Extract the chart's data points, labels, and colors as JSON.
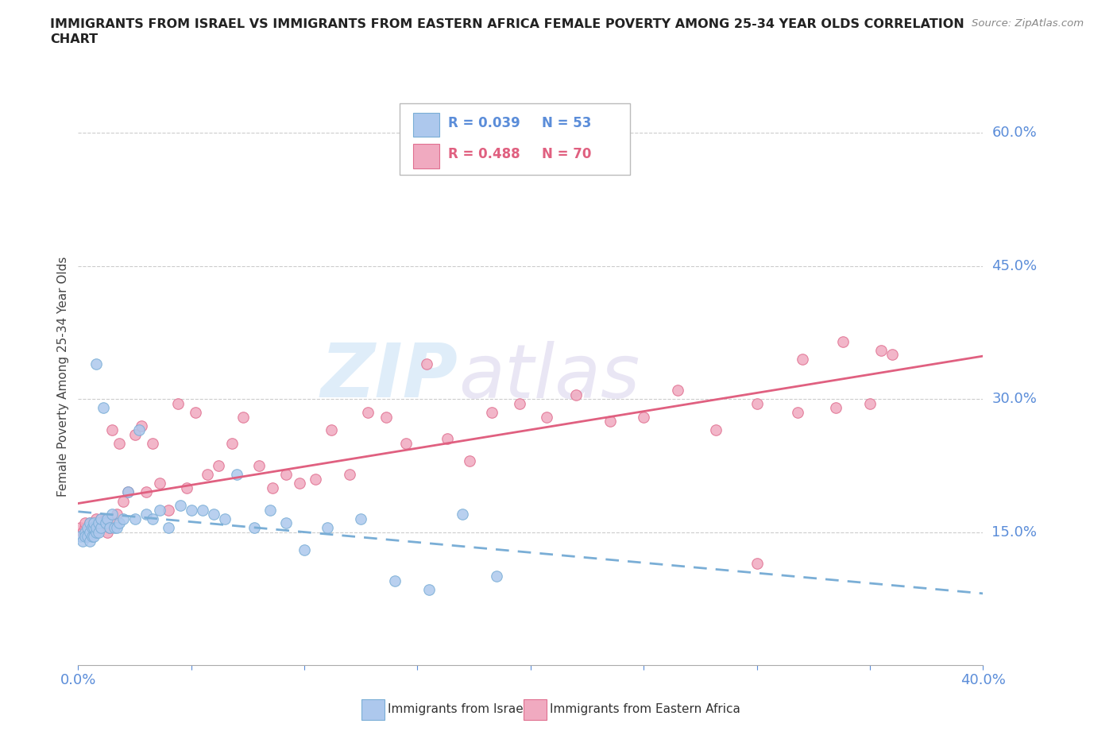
{
  "title_line1": "IMMIGRANTS FROM ISRAEL VS IMMIGRANTS FROM EASTERN AFRICA FEMALE POVERTY AMONG 25-34 YEAR OLDS CORRELATION",
  "title_line2": "CHART",
  "source": "Source: ZipAtlas.com",
  "ylabel": "Female Poverty Among 25-34 Year Olds",
  "xlim": [
    0.0,
    0.4
  ],
  "ylim": [
    0.0,
    0.65
  ],
  "ytick_positions": [
    0.15,
    0.3,
    0.45,
    0.6
  ],
  "ytick_labels": [
    "15.0%",
    "30.0%",
    "45.0%",
    "60.0%"
  ],
  "israel_color": "#adc8ed",
  "eastern_africa_color": "#f0aac0",
  "israel_edge_color": "#7aaed6",
  "eastern_africa_edge_color": "#e07090",
  "israel_line_color": "#7aaed6",
  "eastern_africa_line_color": "#e06080",
  "legend_R_israel": "R = 0.039",
  "legend_N_israel": "N = 53",
  "legend_R_eastern": "R = 0.488",
  "legend_N_eastern": "N = 70",
  "watermark_zip": "ZIP",
  "watermark_atlas": "atlas",
  "israel_scatter_x": [
    0.001,
    0.002,
    0.003,
    0.003,
    0.004,
    0.004,
    0.005,
    0.005,
    0.005,
    0.006,
    0.006,
    0.007,
    0.007,
    0.007,
    0.008,
    0.008,
    0.008,
    0.009,
    0.009,
    0.01,
    0.01,
    0.011,
    0.012,
    0.013,
    0.014,
    0.015,
    0.016,
    0.017,
    0.018,
    0.02,
    0.022,
    0.025,
    0.027,
    0.03,
    0.033,
    0.036,
    0.04,
    0.045,
    0.05,
    0.055,
    0.06,
    0.065,
    0.07,
    0.078,
    0.085,
    0.092,
    0.1,
    0.11,
    0.125,
    0.14,
    0.155,
    0.17,
    0.185
  ],
  "israel_scatter_y": [
    0.145,
    0.14,
    0.15,
    0.145,
    0.145,
    0.155,
    0.14,
    0.15,
    0.16,
    0.145,
    0.155,
    0.145,
    0.155,
    0.16,
    0.15,
    0.155,
    0.34,
    0.15,
    0.16,
    0.155,
    0.165,
    0.29,
    0.16,
    0.165,
    0.155,
    0.17,
    0.155,
    0.155,
    0.16,
    0.165,
    0.195,
    0.165,
    0.265,
    0.17,
    0.165,
    0.175,
    0.155,
    0.18,
    0.175,
    0.175,
    0.17,
    0.165,
    0.215,
    0.155,
    0.175,
    0.16,
    0.13,
    0.155,
    0.165,
    0.095,
    0.085,
    0.17,
    0.1
  ],
  "eastern_africa_scatter_x": [
    0.001,
    0.002,
    0.003,
    0.003,
    0.004,
    0.005,
    0.005,
    0.006,
    0.006,
    0.007,
    0.007,
    0.008,
    0.008,
    0.009,
    0.009,
    0.01,
    0.01,
    0.011,
    0.012,
    0.013,
    0.014,
    0.015,
    0.016,
    0.017,
    0.018,
    0.02,
    0.022,
    0.025,
    0.028,
    0.03,
    0.033,
    0.036,
    0.04,
    0.044,
    0.048,
    0.052,
    0.057,
    0.062,
    0.068,
    0.073,
    0.08,
    0.086,
    0.092,
    0.098,
    0.105,
    0.112,
    0.12,
    0.128,
    0.136,
    0.145,
    0.154,
    0.163,
    0.173,
    0.183,
    0.195,
    0.207,
    0.22,
    0.235,
    0.25,
    0.265,
    0.282,
    0.3,
    0.3,
    0.318,
    0.32,
    0.335,
    0.338,
    0.35,
    0.355,
    0.36
  ],
  "eastern_africa_scatter_y": [
    0.155,
    0.15,
    0.155,
    0.16,
    0.145,
    0.155,
    0.16,
    0.15,
    0.16,
    0.155,
    0.16,
    0.15,
    0.165,
    0.155,
    0.16,
    0.155,
    0.165,
    0.16,
    0.165,
    0.15,
    0.155,
    0.265,
    0.16,
    0.17,
    0.25,
    0.185,
    0.195,
    0.26,
    0.27,
    0.195,
    0.25,
    0.205,
    0.175,
    0.295,
    0.2,
    0.285,
    0.215,
    0.225,
    0.25,
    0.28,
    0.225,
    0.2,
    0.215,
    0.205,
    0.21,
    0.265,
    0.215,
    0.285,
    0.28,
    0.25,
    0.34,
    0.255,
    0.23,
    0.285,
    0.295,
    0.28,
    0.305,
    0.275,
    0.28,
    0.31,
    0.265,
    0.115,
    0.295,
    0.285,
    0.345,
    0.29,
    0.365,
    0.295,
    0.355,
    0.35
  ]
}
